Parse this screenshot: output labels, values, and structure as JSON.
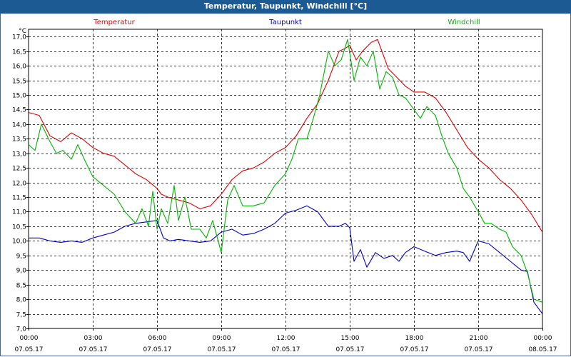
{
  "window": {
    "title": "Temperatur, Taupunkt, Windchill [°C]"
  },
  "colors": {
    "titlebar": "#1c5a94",
    "temperature": "#e00000",
    "dewpoint": "#0000c8",
    "windchill": "#00b400",
    "grid": "#000000"
  },
  "chart_data": {
    "type": "line",
    "title": "Temperatur, Taupunkt, Windchill [°C]",
    "ylabel": "°C",
    "xlabel": "",
    "ylim": [
      7.0,
      17.25
    ],
    "xlim": [
      0,
      24
    ],
    "grid": true,
    "yticks": [
      7.0,
      7.5,
      8.0,
      8.5,
      9.0,
      9.5,
      10.0,
      10.5,
      11.0,
      11.5,
      12.0,
      12.5,
      13.0,
      13.5,
      14.0,
      14.5,
      15.0,
      15.5,
      16.0,
      16.5,
      17.0
    ],
    "ytick_labels": [
      "7,0",
      "7,5",
      "8,0",
      "8,5",
      "9,0",
      "9,5",
      "10,0",
      "10,5",
      "11,0",
      "11,5",
      "12,0",
      "12,5",
      "13,0",
      "13,5",
      "14,0",
      "14,5",
      "15,0",
      "15,5",
      "16,0",
      "16,5",
      "17,0"
    ],
    "xticks": [
      {
        "x": 0,
        "time": "00:00",
        "date": "07.05.17"
      },
      {
        "x": 3,
        "time": "03:00",
        "date": "07.05.17"
      },
      {
        "x": 6,
        "time": "06:00",
        "date": "07.05.17"
      },
      {
        "x": 9,
        "time": "09:00",
        "date": "07.05.17"
      },
      {
        "x": 12,
        "time": "12:00",
        "date": "07.05.17"
      },
      {
        "x": 15,
        "time": "15:00",
        "date": "07.05.17"
      },
      {
        "x": 18,
        "time": "18:00",
        "date": "07.05.17"
      },
      {
        "x": 21,
        "time": "21:00",
        "date": "07.05.17"
      },
      {
        "x": 24,
        "time": "00:00",
        "date": "08.05.17"
      }
    ],
    "series": [
      {
        "name": "Temperatur",
        "color": "#e00000",
        "x": [
          0,
          0.5,
          1.0,
          1.5,
          2.0,
          2.5,
          3.0,
          3.5,
          4.0,
          4.5,
          5.0,
          5.5,
          6.0,
          6.2,
          6.5,
          7.0,
          7.5,
          8.0,
          8.5,
          9.0,
          9.5,
          10.0,
          10.5,
          11.0,
          11.5,
          12.0,
          12.5,
          13.0,
          13.5,
          14.0,
          14.5,
          14.8,
          15.0,
          15.3,
          15.6,
          16.0,
          16.3,
          16.8,
          17.2,
          17.6,
          18.0,
          18.5,
          19.0,
          19.5,
          20.0,
          20.5,
          21.0,
          21.5,
          22.0,
          22.5,
          23.0,
          23.5,
          24.0
        ],
        "values": [
          14.4,
          14.3,
          13.6,
          13.4,
          13.7,
          13.5,
          13.2,
          13.0,
          12.9,
          12.6,
          12.3,
          12.1,
          11.8,
          11.6,
          11.5,
          11.4,
          11.3,
          11.1,
          11.2,
          11.6,
          12.1,
          12.4,
          12.5,
          12.7,
          13.0,
          13.2,
          13.6,
          14.2,
          14.7,
          15.5,
          16.5,
          16.6,
          16.7,
          16.2,
          16.5,
          16.8,
          16.9,
          15.9,
          15.6,
          15.3,
          15.1,
          15.1,
          14.9,
          14.4,
          13.8,
          13.2,
          12.8,
          12.5,
          12.1,
          11.8,
          11.4,
          10.9,
          10.3
        ]
      },
      {
        "name": "Taupunkt",
        "color": "#0000c8",
        "x": [
          0,
          0.5,
          1.0,
          1.5,
          2.0,
          2.5,
          3.0,
          3.5,
          4.0,
          4.5,
          5.0,
          5.5,
          6.0,
          6.3,
          6.6,
          7.0,
          7.5,
          8.0,
          8.5,
          9.0,
          9.5,
          10.0,
          10.5,
          11.0,
          11.5,
          12.0,
          12.5,
          13.0,
          13.5,
          14.0,
          14.5,
          14.8,
          15.0,
          15.2,
          15.5,
          15.8,
          16.2,
          16.6,
          17.0,
          17.3,
          17.6,
          18.0,
          18.5,
          19.0,
          19.5,
          20.0,
          20.3,
          20.6,
          21.0,
          21.5,
          22.0,
          22.5,
          23.0,
          23.3,
          23.6,
          24.0
        ],
        "values": [
          10.1,
          10.1,
          10.0,
          9.95,
          10.0,
          9.95,
          10.1,
          10.2,
          10.3,
          10.5,
          10.6,
          10.65,
          10.7,
          10.1,
          10.0,
          10.05,
          10.0,
          9.95,
          10.0,
          10.3,
          10.4,
          10.2,
          10.25,
          10.4,
          10.6,
          10.95,
          11.05,
          11.2,
          11.0,
          10.5,
          10.5,
          10.6,
          10.45,
          9.3,
          9.7,
          9.1,
          9.6,
          9.4,
          9.5,
          9.3,
          9.6,
          9.8,
          9.65,
          9.5,
          9.6,
          9.65,
          9.6,
          9.3,
          10.0,
          9.9,
          9.6,
          9.3,
          9.0,
          8.95,
          7.9,
          7.5
        ]
      },
      {
        "name": "Windchill",
        "color": "#00b400",
        "x": [
          0,
          0.3,
          0.6,
          1.0,
          1.3,
          1.6,
          2.0,
          2.3,
          2.6,
          3.0,
          3.5,
          4.0,
          4.5,
          5.0,
          5.3,
          5.6,
          5.8,
          6.0,
          6.2,
          6.5,
          6.8,
          7.0,
          7.3,
          7.6,
          8.0,
          8.3,
          8.6,
          9.0,
          9.3,
          9.6,
          10.0,
          10.5,
          11.0,
          11.5,
          12.0,
          12.3,
          12.6,
          13.0,
          13.3,
          13.6,
          14.0,
          14.3,
          14.6,
          14.9,
          15.2,
          15.5,
          15.8,
          16.1,
          16.4,
          16.7,
          17.0,
          17.3,
          17.6,
          18.0,
          18.3,
          18.6,
          19.0,
          19.3,
          19.6,
          20.0,
          20.3,
          20.6,
          21.0,
          21.3,
          21.6,
          22.0,
          22.3,
          22.6,
          23.0,
          23.3,
          23.6,
          24.0
        ],
        "values": [
          13.3,
          13.1,
          14.0,
          13.4,
          13.0,
          13.1,
          12.8,
          13.3,
          12.8,
          12.2,
          11.9,
          11.6,
          11.0,
          10.6,
          11.1,
          10.5,
          11.7,
          10.4,
          11.1,
          10.6,
          11.9,
          10.7,
          11.5,
          10.4,
          10.4,
          10.1,
          10.7,
          9.6,
          11.4,
          11.9,
          11.2,
          11.2,
          11.3,
          11.9,
          12.3,
          12.8,
          13.5,
          13.5,
          14.2,
          15.0,
          16.5,
          16.0,
          16.2,
          16.9,
          15.5,
          16.3,
          16.0,
          16.5,
          15.2,
          15.8,
          15.6,
          15.0,
          14.9,
          14.5,
          14.2,
          14.6,
          14.3,
          13.6,
          13.0,
          12.5,
          11.8,
          11.5,
          11.0,
          10.6,
          10.6,
          10.4,
          10.3,
          9.8,
          9.5,
          8.9,
          8.0,
          7.9
        ]
      }
    ]
  }
}
